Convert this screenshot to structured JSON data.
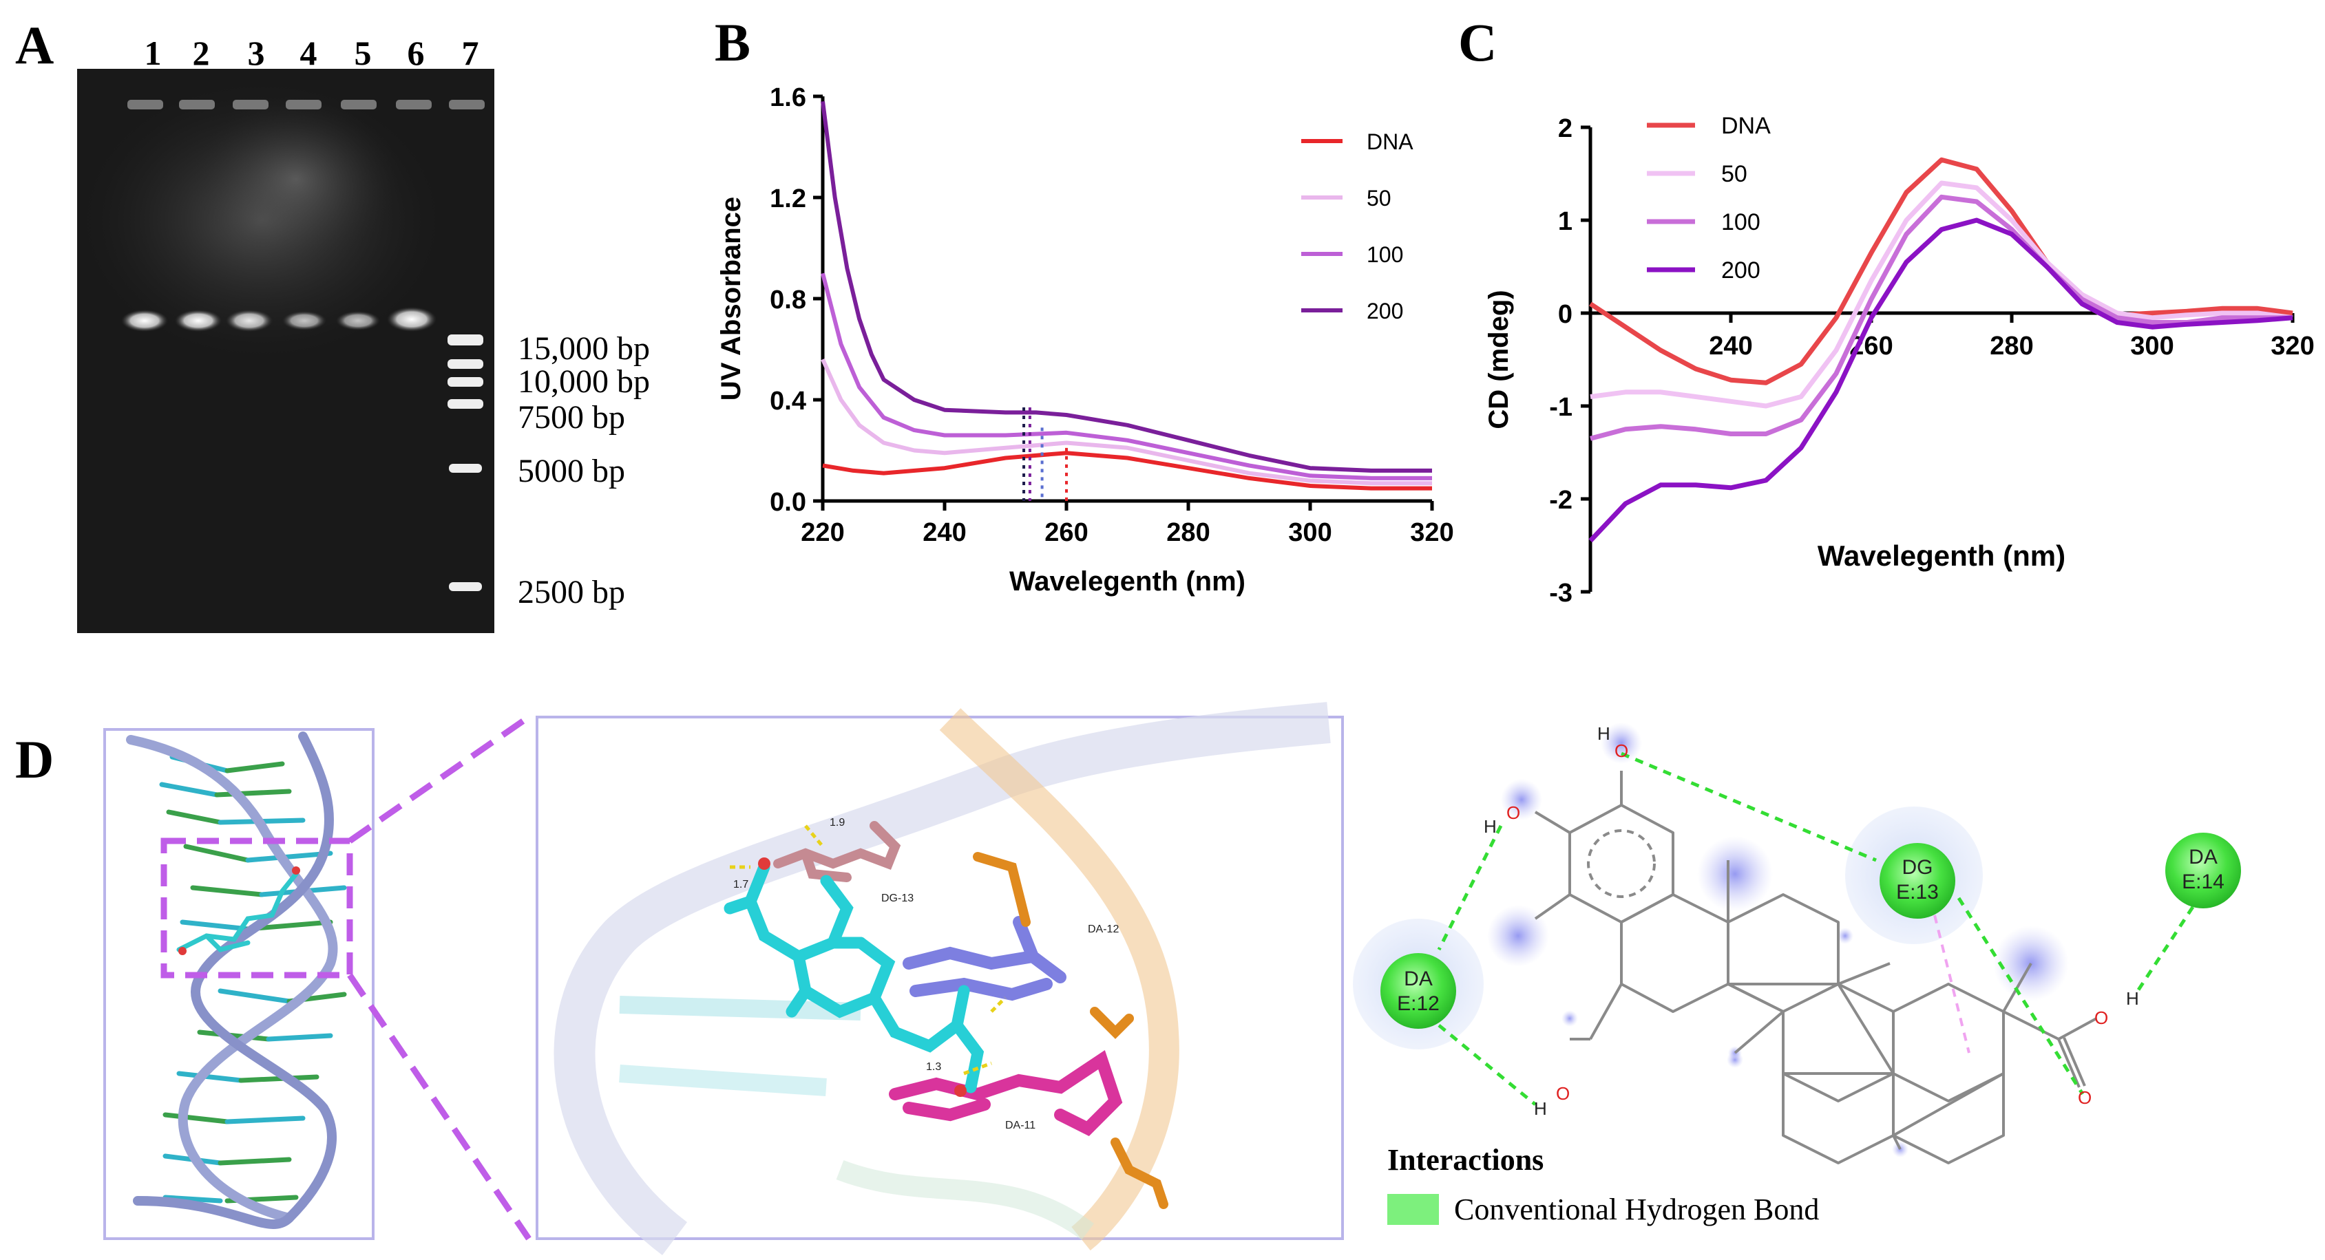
{
  "panels": {
    "a": "A",
    "b": "B",
    "c": "C",
    "d": "D"
  },
  "gel": {
    "lane_labels": [
      "1",
      "2",
      "3",
      "4",
      "5",
      "6",
      "7"
    ],
    "ladder_labels": [
      "15,000 bp",
      "10,000 bp",
      "7500 bp",
      "5000 bp",
      "2500 bp"
    ]
  },
  "chart_data": [
    {
      "type": "line",
      "panel": "B",
      "title": "",
      "xlabel": "Wavelegenth (nm)",
      "ylabel": "UV Absorbance",
      "xlim": [
        220,
        320
      ],
      "ylim": [
        0,
        1.6
      ],
      "xticks": [
        "220",
        "240",
        "260",
        "280",
        "300",
        "320"
      ],
      "yticks": [
        "0.0",
        "0.4",
        "0.8",
        "1.2",
        "1.6"
      ],
      "legend_position": "top-right",
      "series": [
        {
          "name": "DNA",
          "color": "#e8262a",
          "x": [
            220,
            225,
            230,
            240,
            250,
            260,
            270,
            280,
            290,
            300,
            310,
            320
          ],
          "y": [
            0.14,
            0.12,
            0.11,
            0.13,
            0.17,
            0.19,
            0.17,
            0.13,
            0.09,
            0.06,
            0.05,
            0.05
          ]
        },
        {
          "name": "50",
          "color": "#e9b7ec",
          "x": [
            220,
            223,
            226,
            230,
            235,
            240,
            250,
            260,
            270,
            280,
            290,
            300,
            310,
            320
          ],
          "y": [
            0.56,
            0.4,
            0.3,
            0.23,
            0.2,
            0.19,
            0.21,
            0.23,
            0.21,
            0.16,
            0.11,
            0.08,
            0.07,
            0.07
          ]
        },
        {
          "name": "100",
          "color": "#bd5fd6",
          "x": [
            220,
            223,
            226,
            230,
            235,
            240,
            250,
            260,
            270,
            280,
            290,
            300,
            310,
            320
          ],
          "y": [
            0.9,
            0.62,
            0.45,
            0.33,
            0.28,
            0.26,
            0.26,
            0.27,
            0.24,
            0.19,
            0.14,
            0.1,
            0.09,
            0.09
          ]
        },
        {
          "name": "200",
          "color": "#7a1f9a",
          "x": [
            220,
            222,
            224,
            226,
            228,
            230,
            235,
            240,
            250,
            255,
            260,
            270,
            280,
            290,
            300,
            310,
            320
          ],
          "y": [
            1.58,
            1.2,
            0.92,
            0.72,
            0.58,
            0.48,
            0.4,
            0.36,
            0.35,
            0.35,
            0.34,
            0.3,
            0.24,
            0.18,
            0.13,
            0.12,
            0.12
          ]
        }
      ],
      "markers": [
        {
          "x": 253,
          "color": "#1b1b4a"
        },
        {
          "x": 254,
          "color": "#7a1f9a"
        },
        {
          "x": 256,
          "color": "#5a6fd0"
        },
        {
          "x": 260,
          "color": "#e8262a"
        }
      ]
    },
    {
      "type": "line",
      "panel": "C",
      "title": "",
      "xlabel": "Wavelegenth (nm)",
      "ylabel": "CD (mdeg)",
      "xlim": [
        220,
        320
      ],
      "ylim": [
        -3,
        2
      ],
      "xticks": [
        "240",
        "260",
        "280",
        "300",
        "320"
      ],
      "yticks": [
        "-3",
        "-2",
        "-1",
        "0",
        "1",
        "2"
      ],
      "legend_position": "top-left",
      "series": [
        {
          "name": "DNA",
          "color": "#e8464a",
          "x": [
            220,
            225,
            230,
            235,
            240,
            245,
            250,
            255,
            260,
            265,
            270,
            275,
            280,
            285,
            290,
            295,
            300,
            305,
            310,
            315,
            320
          ],
          "y": [
            0.1,
            -0.15,
            -0.4,
            -0.6,
            -0.72,
            -0.75,
            -0.55,
            -0.05,
            0.65,
            1.3,
            1.65,
            1.55,
            1.1,
            0.55,
            0.15,
            -0.02,
            0.0,
            0.02,
            0.05,
            0.05,
            0.0
          ]
        },
        {
          "name": "50",
          "color": "#f0c2f3",
          "x": [
            220,
            225,
            230,
            235,
            240,
            245,
            250,
            255,
            260,
            265,
            270,
            275,
            280,
            285,
            290,
            295,
            300,
            305,
            310,
            315,
            320
          ],
          "y": [
            -0.9,
            -0.85,
            -0.85,
            -0.9,
            -0.95,
            -1.0,
            -0.9,
            -0.4,
            0.35,
            1.0,
            1.4,
            1.35,
            1.0,
            0.55,
            0.2,
            0.0,
            -0.05,
            -0.02,
            0.0,
            0.0,
            -0.05
          ]
        },
        {
          "name": "100",
          "color": "#c86ed8",
          "x": [
            220,
            225,
            230,
            235,
            240,
            245,
            250,
            255,
            260,
            265,
            270,
            275,
            280,
            285,
            290,
            295,
            300,
            305,
            310,
            315,
            320
          ],
          "y": [
            -1.35,
            -1.25,
            -1.22,
            -1.25,
            -1.3,
            -1.3,
            -1.15,
            -0.65,
            0.15,
            0.85,
            1.25,
            1.2,
            0.9,
            0.5,
            0.15,
            -0.05,
            -0.1,
            -0.1,
            -0.05,
            -0.05,
            -0.05
          ]
        },
        {
          "name": "200",
          "color": "#8b12c4",
          "x": [
            220,
            225,
            230,
            235,
            240,
            245,
            250,
            255,
            260,
            265,
            270,
            275,
            280,
            285,
            290,
            295,
            300,
            305,
            310,
            315,
            320
          ],
          "y": [
            -2.45,
            -2.05,
            -1.85,
            -1.85,
            -1.88,
            -1.8,
            -1.45,
            -0.85,
            -0.05,
            0.55,
            0.9,
            1.0,
            0.85,
            0.5,
            0.1,
            -0.1,
            -0.15,
            -0.12,
            -0.1,
            -0.08,
            -0.05
          ]
        }
      ]
    }
  ],
  "molecular": {
    "zoom_labels": {
      "dg13": "DG-13",
      "da12": "DA-12",
      "da11": "DA-11",
      "d19": "1.9",
      "d17": "1.7",
      "d13": "1.3"
    },
    "residues": [
      {
        "name": "DA",
        "chain": "E:12"
      },
      {
        "name": "DG",
        "chain": "E:13"
      },
      {
        "name": "DA",
        "chain": "E:14"
      }
    ],
    "atoms": {
      "h": "H",
      "o": "O"
    },
    "legend_title": "Interactions",
    "legend_item": "Conventional Hydrogen Bond",
    "hbond_color": "#33dd33",
    "residue_color": "#33dd33"
  }
}
